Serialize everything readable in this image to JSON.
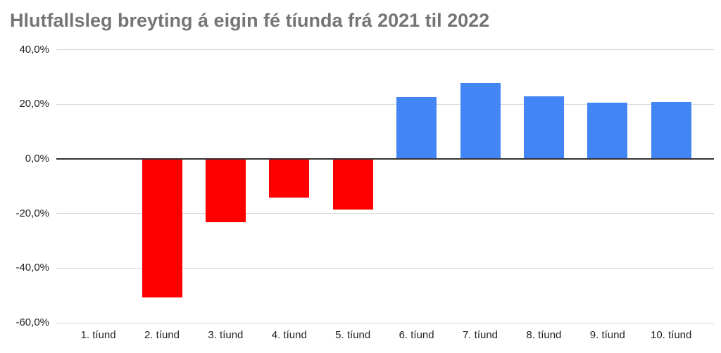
{
  "chart_data": {
    "type": "bar",
    "title": "Hlutfallsleg breyting á eigin fé tíunda frá 2021 til 2022",
    "categories": [
      "1. tíund",
      "2. tíund",
      "3. tíund",
      "4. tíund",
      "5. tíund",
      "6. tíund",
      "7. tíund",
      "8. tíund",
      "9. tíund",
      "10. tíund"
    ],
    "values": [
      0.0,
      -50.8,
      -23.2,
      -14.2,
      -18.5,
      22.7,
      27.8,
      22.9,
      20.6,
      20.9
    ],
    "value_unit": "percent",
    "ylim": [
      -60,
      40
    ],
    "ytick_values": [
      40,
      20,
      0,
      -20,
      -40,
      -60
    ],
    "ytick_labels": [
      "40,0%",
      "20,0%",
      "0,0%",
      "-20,0%",
      "-40,0%",
      "-60,0%"
    ],
    "xlabel": "",
    "ylabel": "",
    "grid": true,
    "legend": "none",
    "colors": {
      "positive_bar": "#4285f4",
      "negative_bar": "#ff0000",
      "gridline": "#d9d9d9",
      "zero_baseline": "#333333",
      "title_text": "#757575",
      "axis_text": "#222222",
      "background": "#ffffff"
    }
  }
}
